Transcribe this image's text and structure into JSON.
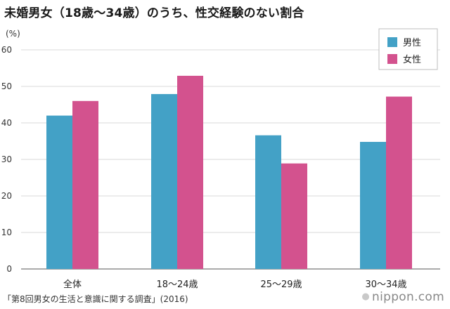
{
  "title": "未婚男女（18歳〜34歳）のうち、性交経験のない割合",
  "source": "「第8回男女の生活と意識に関する調査」(2016)",
  "brand": "nippon.com",
  "colors": {
    "male": "#43a1c6",
    "female": "#d3528e",
    "grid": "#d9d9d9",
    "axis": "#555555"
  },
  "chart_data": {
    "type": "bar",
    "title": "未婚男女（18歳〜34歳）のうち、性交経験のない割合",
    "ylabel": "(%)",
    "xlabel": "",
    "ylim": [
      0,
      60
    ],
    "yticks": [
      0,
      10,
      20,
      30,
      40,
      50,
      60
    ],
    "categories": [
      "全体",
      "18〜24歳",
      "25〜29歳",
      "30〜34歳"
    ],
    "series": [
      {
        "name": "男性",
        "values": [
          42.0,
          47.9,
          36.6,
          34.8
        ]
      },
      {
        "name": "女性",
        "values": [
          46.0,
          52.9,
          28.9,
          47.2
        ]
      }
    ],
    "legend": {
      "placement": "top-right",
      "entries": [
        "男性",
        "女性"
      ]
    },
    "grid": true
  }
}
